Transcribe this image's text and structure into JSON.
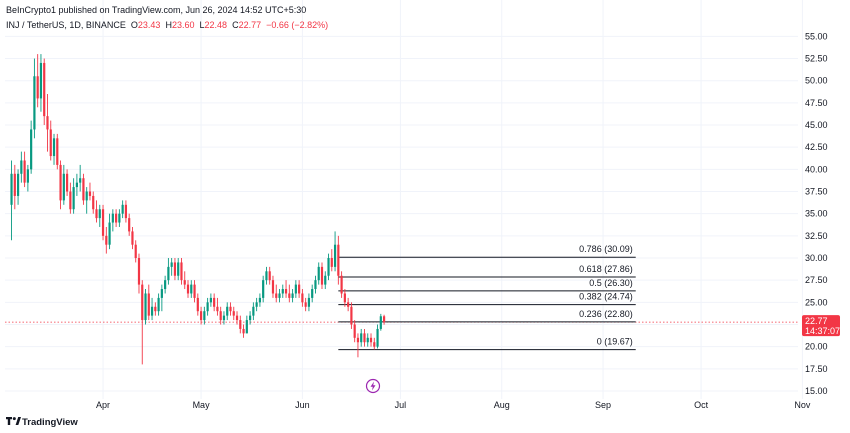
{
  "header": {
    "published_by": "BeInCrypto1 published on TradingView.com, Jun 26, 2024 14:52 UTC+5:30",
    "symbol": "INJ / TetherUS, 1D, BINANCE",
    "ohlc": [
      {
        "label": "O",
        "value": "23.43"
      },
      {
        "label": "H",
        "value": "23.60"
      },
      {
        "label": "L",
        "value": "22.48"
      },
      {
        "label": "C",
        "value": "22.77"
      },
      {
        "label": "",
        "value": "−0.66 (−2.82%)"
      }
    ]
  },
  "price_badge": {
    "price": "22.77",
    "countdown": "14:37:07",
    "color": "#f23645"
  },
  "footer": {
    "brand": "TradingView"
  },
  "colors": {
    "up": "#089981",
    "down": "#f23645",
    "fib_line": "#131722",
    "grid": "#f0f3fa",
    "lightning": "#9c27b0"
  },
  "chart_data": {
    "type": "candlestick",
    "symbol": "INJ / TetherUS",
    "timeframe": "1D",
    "exchange": "BINANCE",
    "y_axis": {
      "ticks": [
        15.0,
        17.5,
        20.0,
        22.5,
        25.0,
        27.5,
        30.0,
        32.5,
        35.0,
        37.5,
        40.0,
        42.5,
        45.0,
        47.5,
        50.0,
        52.5,
        55.0
      ],
      "range": [
        14.5,
        56.5
      ]
    },
    "x_axis": {
      "ticks": [
        {
          "label": "Apr",
          "date": "2024-04-01"
        },
        {
          "label": "May",
          "date": "2024-05-01"
        },
        {
          "label": "Jun",
          "date": "2024-06-01"
        },
        {
          "label": "Jul",
          "date": "2024-07-01"
        },
        {
          "label": "Aug",
          "date": "2024-08-01"
        },
        {
          "label": "Sep",
          "date": "2024-09-01"
        },
        {
          "label": "Oct",
          "date": "2024-10-01"
        },
        {
          "label": "Nov",
          "date": "2024-11-01"
        }
      ],
      "range": [
        "2024-03-02",
        "2024-11-02"
      ]
    },
    "last_price": 22.77,
    "fib_levels": [
      {
        "ratio": "0.786",
        "price": 30.09,
        "label": "0.786 (30.09)"
      },
      {
        "ratio": "0.618",
        "price": 27.86,
        "label": "0.618 (27.86)"
      },
      {
        "ratio": "0.5",
        "price": 26.3,
        "label": "0.5 (26.30)"
      },
      {
        "ratio": "0.382",
        "price": 24.74,
        "label": "0.382 (24.74)"
      },
      {
        "ratio": "0.236",
        "price": 22.8,
        "label": "0.236 (22.80)"
      },
      {
        "ratio": "0",
        "price": 19.67,
        "label": "0 (19.67)"
      }
    ],
    "fib_start_date": "2024-06-12",
    "fib_end_date": "2024-09-11",
    "candles": [
      {
        "d": "2024-03-04",
        "o": 36.0,
        "h": 41.0,
        "l": 32.0,
        "c": 39.5
      },
      {
        "d": "2024-03-05",
        "o": 39.5,
        "h": 40.5,
        "l": 35.5,
        "c": 37.0
      },
      {
        "d": "2024-03-06",
        "o": 37.0,
        "h": 40.0,
        "l": 36.0,
        "c": 39.5
      },
      {
        "d": "2024-03-07",
        "o": 39.5,
        "h": 42.0,
        "l": 38.5,
        "c": 41.0
      },
      {
        "d": "2024-03-08",
        "o": 41.0,
        "h": 42.0,
        "l": 38.0,
        "c": 38.5
      },
      {
        "d": "2024-03-09",
        "o": 38.5,
        "h": 40.5,
        "l": 37.5,
        "c": 40.0
      },
      {
        "d": "2024-03-10",
        "o": 40.0,
        "h": 45.5,
        "l": 39.5,
        "c": 44.5
      },
      {
        "d": "2024-03-11",
        "o": 44.5,
        "h": 52.5,
        "l": 43.5,
        "c": 50.5
      },
      {
        "d": "2024-03-12",
        "o": 50.5,
        "h": 53.0,
        "l": 47.0,
        "c": 48.0
      },
      {
        "d": "2024-03-13",
        "o": 48.0,
        "h": 53.0,
        "l": 46.5,
        "c": 52.0
      },
      {
        "d": "2024-03-14",
        "o": 52.0,
        "h": 52.5,
        "l": 45.0,
        "c": 46.0
      },
      {
        "d": "2024-03-15",
        "o": 46.0,
        "h": 48.5,
        "l": 42.0,
        "c": 44.5
      },
      {
        "d": "2024-03-16",
        "o": 44.5,
        "h": 45.5,
        "l": 41.0,
        "c": 41.5
      },
      {
        "d": "2024-03-17",
        "o": 41.5,
        "h": 44.0,
        "l": 40.5,
        "c": 43.5
      },
      {
        "d": "2024-03-18",
        "o": 43.5,
        "h": 44.0,
        "l": 40.0,
        "c": 40.5
      },
      {
        "d": "2024-03-19",
        "o": 40.5,
        "h": 41.0,
        "l": 35.5,
        "c": 36.5
      },
      {
        "d": "2024-03-20",
        "o": 36.5,
        "h": 40.5,
        "l": 36.0,
        "c": 39.5
      },
      {
        "d": "2024-03-21",
        "o": 39.5,
        "h": 40.0,
        "l": 37.0,
        "c": 37.5
      },
      {
        "d": "2024-03-22",
        "o": 37.5,
        "h": 38.5,
        "l": 35.0,
        "c": 35.5
      },
      {
        "d": "2024-03-23",
        "o": 35.5,
        "h": 39.0,
        "l": 35.0,
        "c": 38.0
      },
      {
        "d": "2024-03-24",
        "o": 38.0,
        "h": 39.5,
        "l": 37.0,
        "c": 38.5
      },
      {
        "d": "2024-03-25",
        "o": 38.5,
        "h": 40.5,
        "l": 37.5,
        "c": 39.0
      },
      {
        "d": "2024-03-26",
        "o": 39.0,
        "h": 39.5,
        "l": 36.0,
        "c": 36.5
      },
      {
        "d": "2024-03-27",
        "o": 36.5,
        "h": 38.0,
        "l": 35.0,
        "c": 37.5
      },
      {
        "d": "2024-03-28",
        "o": 37.5,
        "h": 38.5,
        "l": 36.5,
        "c": 37.0
      },
      {
        "d": "2024-03-29",
        "o": 37.0,
        "h": 37.5,
        "l": 35.0,
        "c": 35.5
      },
      {
        "d": "2024-03-30",
        "o": 35.5,
        "h": 36.5,
        "l": 34.0,
        "c": 34.5
      },
      {
        "d": "2024-03-31",
        "o": 34.5,
        "h": 36.0,
        "l": 33.5,
        "c": 35.5
      },
      {
        "d": "2024-04-01",
        "o": 35.5,
        "h": 36.0,
        "l": 32.0,
        "c": 32.5
      },
      {
        "d": "2024-04-02",
        "o": 32.5,
        "h": 33.5,
        "l": 30.5,
        "c": 31.5
      },
      {
        "d": "2024-04-03",
        "o": 31.5,
        "h": 35.0,
        "l": 31.0,
        "c": 34.0
      },
      {
        "d": "2024-04-04",
        "o": 34.0,
        "h": 35.5,
        "l": 33.0,
        "c": 35.0
      },
      {
        "d": "2024-04-05",
        "o": 35.0,
        "h": 35.5,
        "l": 33.5,
        "c": 34.0
      },
      {
        "d": "2024-04-06",
        "o": 34.0,
        "h": 35.5,
        "l": 33.5,
        "c": 35.0
      },
      {
        "d": "2024-04-07",
        "o": 35.0,
        "h": 36.5,
        "l": 34.5,
        "c": 36.0
      },
      {
        "d": "2024-04-08",
        "o": 36.0,
        "h": 36.5,
        "l": 34.0,
        "c": 34.5
      },
      {
        "d": "2024-04-09",
        "o": 34.5,
        "h": 35.0,
        "l": 32.5,
        "c": 33.0
      },
      {
        "d": "2024-04-10",
        "o": 33.0,
        "h": 33.5,
        "l": 31.0,
        "c": 31.5
      },
      {
        "d": "2024-04-11",
        "o": 31.5,
        "h": 32.0,
        "l": 29.5,
        "c": 30.0
      },
      {
        "d": "2024-04-12",
        "o": 30.0,
        "h": 30.5,
        "l": 26.0,
        "c": 27.0
      },
      {
        "d": "2024-04-13",
        "o": 27.0,
        "h": 27.5,
        "l": 18.0,
        "c": 23.0
      },
      {
        "d": "2024-04-14",
        "o": 23.0,
        "h": 26.5,
        "l": 22.5,
        "c": 26.0
      },
      {
        "d": "2024-04-15",
        "o": 26.0,
        "h": 27.0,
        "l": 23.0,
        "c": 23.5
      },
      {
        "d": "2024-04-16",
        "o": 23.5,
        "h": 25.5,
        "l": 23.0,
        "c": 24.5
      },
      {
        "d": "2024-04-17",
        "o": 24.5,
        "h": 25.0,
        "l": 23.5,
        "c": 24.0
      },
      {
        "d": "2024-04-18",
        "o": 24.0,
        "h": 26.0,
        "l": 23.5,
        "c": 25.5
      },
      {
        "d": "2024-04-19",
        "o": 25.5,
        "h": 27.0,
        "l": 24.0,
        "c": 26.5
      },
      {
        "d": "2024-04-20",
        "o": 26.5,
        "h": 28.0,
        "l": 26.0,
        "c": 27.5
      },
      {
        "d": "2024-04-21",
        "o": 27.5,
        "h": 30.0,
        "l": 27.0,
        "c": 29.0
      },
      {
        "d": "2024-04-22",
        "o": 29.0,
        "h": 30.0,
        "l": 28.0,
        "c": 29.5
      },
      {
        "d": "2024-04-23",
        "o": 29.5,
        "h": 30.0,
        "l": 27.5,
        "c": 28.0
      },
      {
        "d": "2024-04-24",
        "o": 28.0,
        "h": 30.0,
        "l": 27.5,
        "c": 29.5
      },
      {
        "d": "2024-04-25",
        "o": 29.5,
        "h": 30.0,
        "l": 27.0,
        "c": 27.5
      },
      {
        "d": "2024-04-26",
        "o": 27.5,
        "h": 28.5,
        "l": 26.5,
        "c": 27.0
      },
      {
        "d": "2024-04-27",
        "o": 27.0,
        "h": 27.5,
        "l": 25.5,
        "c": 26.0
      },
      {
        "d": "2024-04-28",
        "o": 26.0,
        "h": 27.5,
        "l": 25.5,
        "c": 27.0
      },
      {
        "d": "2024-04-29",
        "o": 27.0,
        "h": 27.5,
        "l": 25.0,
        "c": 25.5
      },
      {
        "d": "2024-04-30",
        "o": 25.5,
        "h": 26.0,
        "l": 23.5,
        "c": 24.0
      },
      {
        "d": "2024-05-01",
        "o": 24.0,
        "h": 24.5,
        "l": 22.5,
        "c": 23.0
      },
      {
        "d": "2024-05-02",
        "o": 23.0,
        "h": 24.5,
        "l": 22.5,
        "c": 24.0
      },
      {
        "d": "2024-05-03",
        "o": 24.0,
        "h": 25.5,
        "l": 23.5,
        "c": 25.0
      },
      {
        "d": "2024-05-04",
        "o": 25.0,
        "h": 26.0,
        "l": 24.5,
        "c": 25.5
      },
      {
        "d": "2024-05-05",
        "o": 25.5,
        "h": 26.0,
        "l": 24.0,
        "c": 24.5
      },
      {
        "d": "2024-05-06",
        "o": 24.5,
        "h": 25.5,
        "l": 23.5,
        "c": 24.0
      },
      {
        "d": "2024-05-07",
        "o": 24.0,
        "h": 24.5,
        "l": 22.5,
        "c": 23.0
      },
      {
        "d": "2024-05-08",
        "o": 23.0,
        "h": 24.0,
        "l": 22.5,
        "c": 23.5
      },
      {
        "d": "2024-05-09",
        "o": 23.5,
        "h": 25.0,
        "l": 23.0,
        "c": 24.5
      },
      {
        "d": "2024-05-10",
        "o": 24.5,
        "h": 25.0,
        "l": 23.5,
        "c": 24.0
      },
      {
        "d": "2024-05-11",
        "o": 24.0,
        "h": 24.5,
        "l": 23.0,
        "c": 23.5
      },
      {
        "d": "2024-05-12",
        "o": 23.5,
        "h": 24.0,
        "l": 22.5,
        "c": 23.0
      },
      {
        "d": "2024-05-13",
        "o": 23.0,
        "h": 23.5,
        "l": 21.5,
        "c": 22.0
      },
      {
        "d": "2024-05-14",
        "o": 22.0,
        "h": 22.5,
        "l": 21.0,
        "c": 21.5
      },
      {
        "d": "2024-05-15",
        "o": 21.5,
        "h": 23.5,
        "l": 21.5,
        "c": 23.0
      },
      {
        "d": "2024-05-16",
        "o": 23.0,
        "h": 24.0,
        "l": 22.5,
        "c": 23.5
      },
      {
        "d": "2024-05-17",
        "o": 23.5,
        "h": 25.0,
        "l": 23.0,
        "c": 24.5
      },
      {
        "d": "2024-05-18",
        "o": 24.5,
        "h": 25.5,
        "l": 24.0,
        "c": 25.0
      },
      {
        "d": "2024-05-19",
        "o": 25.0,
        "h": 26.0,
        "l": 24.5,
        "c": 25.5
      },
      {
        "d": "2024-05-20",
        "o": 25.5,
        "h": 28.0,
        "l": 25.0,
        "c": 27.5
      },
      {
        "d": "2024-05-21",
        "o": 27.5,
        "h": 29.0,
        "l": 27.0,
        "c": 28.5
      },
      {
        "d": "2024-05-22",
        "o": 28.5,
        "h": 29.0,
        "l": 27.0,
        "c": 27.5
      },
      {
        "d": "2024-05-23",
        "o": 27.5,
        "h": 28.0,
        "l": 25.5,
        "c": 26.0
      },
      {
        "d": "2024-05-24",
        "o": 26.0,
        "h": 27.0,
        "l": 25.0,
        "c": 25.5
      },
      {
        "d": "2024-05-25",
        "o": 25.5,
        "h": 26.5,
        "l": 25.0,
        "c": 26.0
      },
      {
        "d": "2024-05-26",
        "o": 26.0,
        "h": 27.0,
        "l": 25.5,
        "c": 26.5
      },
      {
        "d": "2024-05-27",
        "o": 26.5,
        "h": 27.5,
        "l": 25.5,
        "c": 26.0
      },
      {
        "d": "2024-05-28",
        "o": 26.0,
        "h": 27.0,
        "l": 25.0,
        "c": 25.5
      },
      {
        "d": "2024-05-29",
        "o": 25.5,
        "h": 26.5,
        "l": 25.0,
        "c": 26.0
      },
      {
        "d": "2024-05-30",
        "o": 26.0,
        "h": 27.5,
        "l": 25.5,
        "c": 27.0
      },
      {
        "d": "2024-05-31",
        "o": 27.0,
        "h": 27.5,
        "l": 25.5,
        "c": 26.0
      },
      {
        "d": "2024-06-01",
        "o": 26.0,
        "h": 26.5,
        "l": 24.5,
        "c": 25.0
      },
      {
        "d": "2024-06-02",
        "o": 25.0,
        "h": 25.5,
        "l": 24.0,
        "c": 24.5
      },
      {
        "d": "2024-06-03",
        "o": 24.5,
        "h": 26.0,
        "l": 24.0,
        "c": 25.5
      },
      {
        "d": "2024-06-04",
        "o": 25.5,
        "h": 27.0,
        "l": 25.0,
        "c": 26.5
      },
      {
        "d": "2024-06-05",
        "o": 26.5,
        "h": 28.0,
        "l": 26.0,
        "c": 27.5
      },
      {
        "d": "2024-06-06",
        "o": 27.5,
        "h": 29.5,
        "l": 27.0,
        "c": 29.0
      },
      {
        "d": "2024-06-07",
        "o": 29.0,
        "h": 29.5,
        "l": 26.5,
        "c": 27.0
      },
      {
        "d": "2024-06-08",
        "o": 27.0,
        "h": 28.5,
        "l": 26.5,
        "c": 28.0
      },
      {
        "d": "2024-06-09",
        "o": 28.0,
        "h": 30.5,
        "l": 27.5,
        "c": 30.0
      },
      {
        "d": "2024-06-10",
        "o": 30.0,
        "h": 31.0,
        "l": 28.5,
        "c": 29.0
      },
      {
        "d": "2024-06-11",
        "o": 29.0,
        "h": 33.0,
        "l": 28.5,
        "c": 31.5
      },
      {
        "d": "2024-06-12",
        "o": 31.5,
        "h": 32.5,
        "l": 27.0,
        "c": 28.0
      },
      {
        "d": "2024-06-13",
        "o": 28.0,
        "h": 28.5,
        "l": 25.5,
        "c": 26.0
      },
      {
        "d": "2024-06-14",
        "o": 26.0,
        "h": 26.5,
        "l": 24.5,
        "c": 25.0
      },
      {
        "d": "2024-06-15",
        "o": 25.0,
        "h": 25.5,
        "l": 24.0,
        "c": 24.5
      },
      {
        "d": "2024-06-16",
        "o": 24.5,
        "h": 25.0,
        "l": 22.0,
        "c": 22.5
      },
      {
        "d": "2024-06-17",
        "o": 22.5,
        "h": 23.0,
        "l": 20.5,
        "c": 21.0
      },
      {
        "d": "2024-06-18",
        "o": 21.0,
        "h": 21.5,
        "l": 18.8,
        "c": 20.5
      },
      {
        "d": "2024-06-19",
        "o": 20.5,
        "h": 22.0,
        "l": 20.0,
        "c": 21.5
      },
      {
        "d": "2024-06-20",
        "o": 21.5,
        "h": 22.0,
        "l": 20.0,
        "c": 20.5
      },
      {
        "d": "2024-06-21",
        "o": 20.5,
        "h": 21.5,
        "l": 20.0,
        "c": 21.0
      },
      {
        "d": "2024-06-22",
        "o": 21.0,
        "h": 21.5,
        "l": 20.0,
        "c": 20.5
      },
      {
        "d": "2024-06-23",
        "o": 20.5,
        "h": 21.0,
        "l": 19.67,
        "c": 20.0
      },
      {
        "d": "2024-06-24",
        "o": 20.0,
        "h": 22.5,
        "l": 19.8,
        "c": 22.0
      },
      {
        "d": "2024-06-25",
        "o": 22.0,
        "h": 23.7,
        "l": 21.8,
        "c": 23.43
      },
      {
        "d": "2024-06-26",
        "o": 23.43,
        "h": 23.6,
        "l": 22.48,
        "c": 22.77
      }
    ]
  }
}
